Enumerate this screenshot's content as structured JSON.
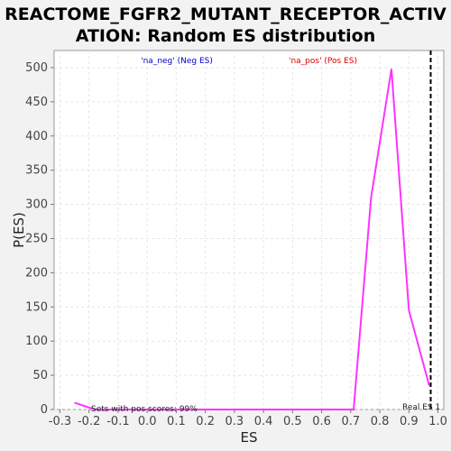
{
  "chart_data": {
    "type": "line",
    "title_line1": "REACTOME_FGFR2_MUTANT_RECEPTOR_ACTIV",
    "title_line2": "ATION: Random ES distribution",
    "xlabel": "ES",
    "ylabel": "P(ES)",
    "xlim": [
      -0.32,
      1.02
    ],
    "ylim": [
      0,
      525
    ],
    "x_ticks": [
      -0.3,
      -0.2,
      -0.1,
      0.0,
      0.1,
      0.2,
      0.3,
      0.4,
      0.5,
      0.6,
      0.7,
      0.8,
      0.9,
      1.0
    ],
    "x_tick_labels": [
      "-0.3",
      "-0.2",
      "-0.1",
      "0.0",
      "0.1",
      "0.2",
      "0.3",
      "0.4",
      "0.5",
      "0.6",
      "0.7",
      "0.8",
      "0.9",
      "1.0"
    ],
    "y_ticks": [
      0,
      50,
      100,
      150,
      200,
      250,
      300,
      350,
      400,
      450,
      500
    ],
    "y_tick_labels": [
      "0",
      "50",
      "100",
      "150",
      "200",
      "250",
      "300",
      "350",
      "400",
      "450",
      "500"
    ],
    "grid": true,
    "series": [
      {
        "color": "#ff33ff",
        "x": [
          -0.25,
          -0.18,
          0.2,
          0.71,
          0.77,
          0.84,
          0.9,
          0.97
        ],
        "y": [
          10,
          0,
          0,
          0,
          310,
          498,
          145,
          35
        ]
      }
    ],
    "real_es": 0.975,
    "legend_neg": "'na_neg' (Neg ES)",
    "legend_pos": "'na_pos' (Pos ES)",
    "neg_color": "#0000cc",
    "pos_color": "#dd0000",
    "sets_text": "Sets with pos scores: 99%",
    "real_es_label": "Real ES 1"
  }
}
